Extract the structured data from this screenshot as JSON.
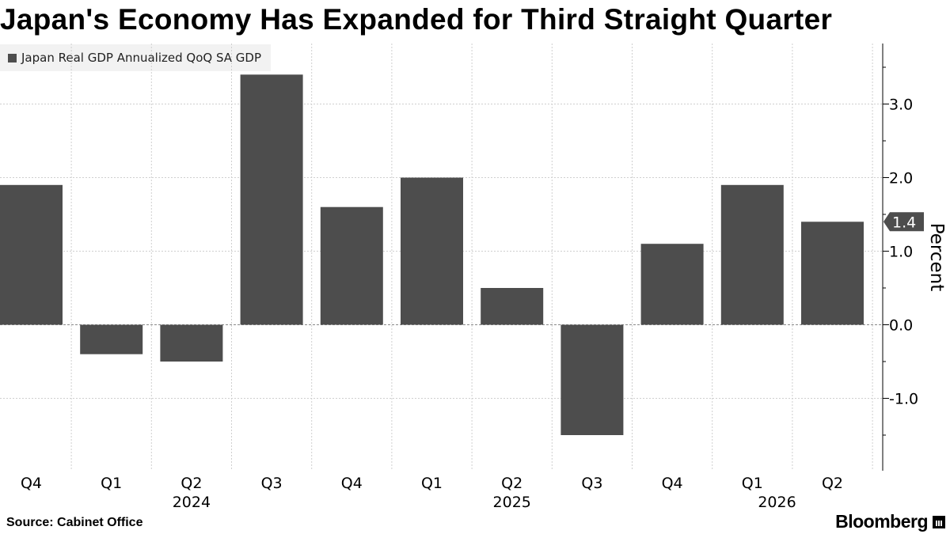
{
  "chart_data": {
    "type": "bar",
    "title": "Japan's Economy Has Expanded for Third Straight Quarter",
    "categories": [
      "Q4",
      "Q1",
      "Q2",
      "Q3",
      "Q4",
      "Q1",
      "Q2",
      "Q3",
      "Q4",
      "Q1",
      "Q2"
    ],
    "year_labels": [
      "2024",
      "2025",
      "2026"
    ],
    "series": [
      {
        "name": "Japan Real GDP Annualized QoQ SA GDP",
        "values": [
          1.9,
          -0.4,
          -0.5,
          3.4,
          1.6,
          2.0,
          0.5,
          -1.5,
          1.1,
          1.9,
          1.4
        ]
      }
    ],
    "ylabel": "Percent",
    "ylim": [
      -2.0,
      3.8
    ],
    "yticks": [
      "3.0",
      "2.0",
      "1.0",
      "0.0",
      "-1.0"
    ],
    "last_value_label": "1.4",
    "grid": true,
    "legend_position": "top-left",
    "bar_color": "#4d4d4d"
  },
  "footer": {
    "source": "Source:  Cabinet Office",
    "brand": "Bloomberg"
  }
}
